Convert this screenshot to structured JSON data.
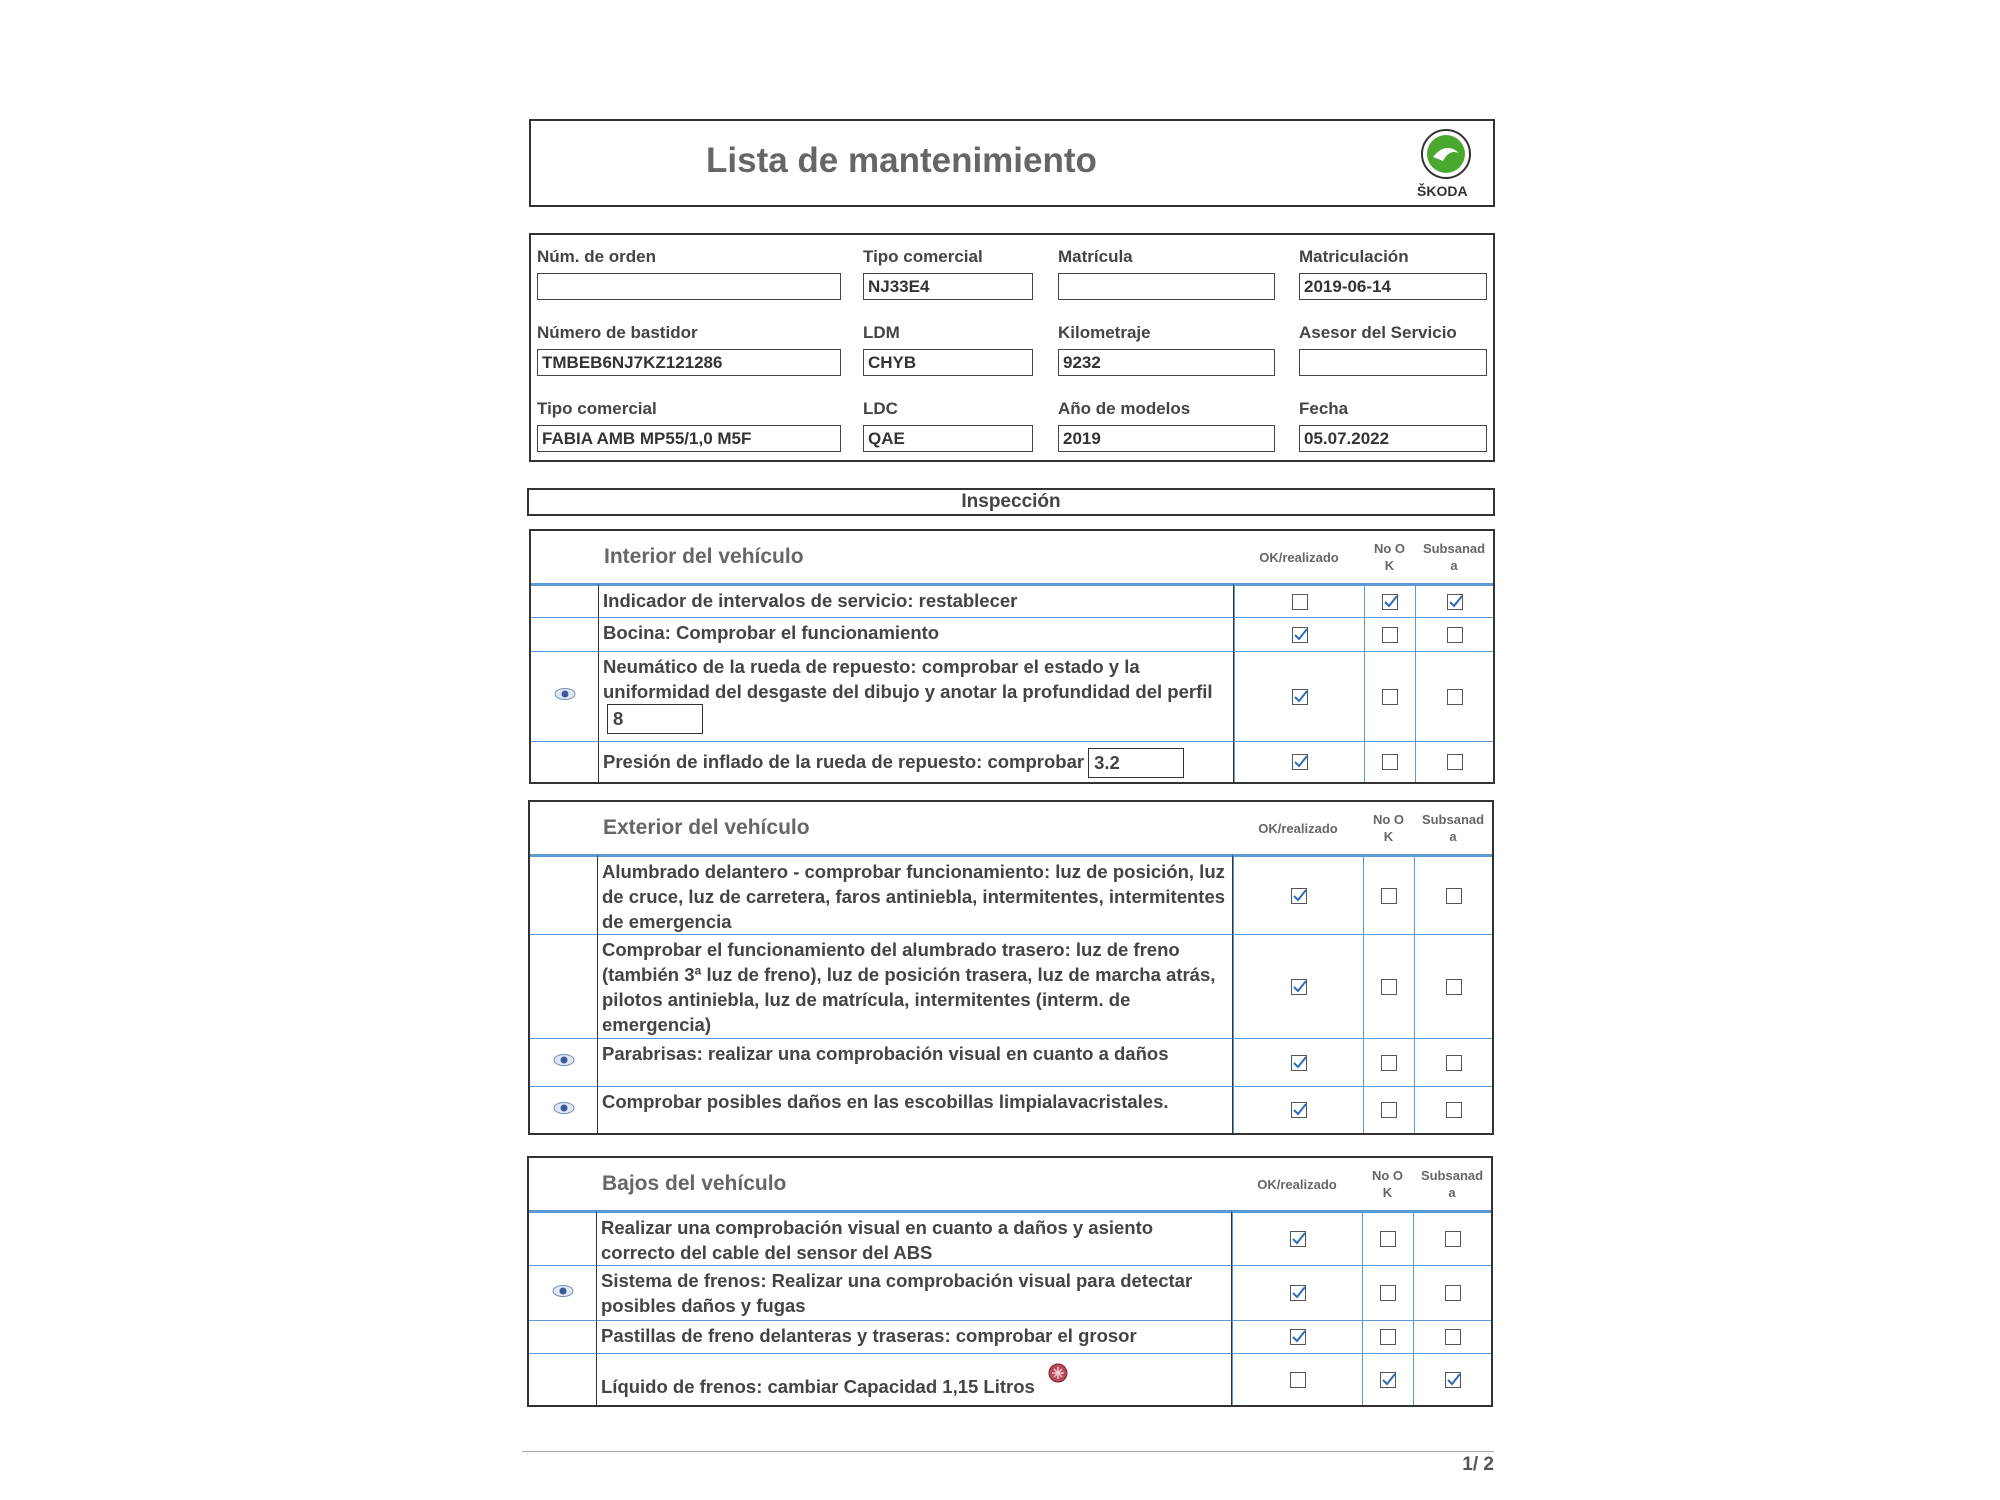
{
  "header": {
    "title": "Lista de mantenimiento",
    "brand": "ŠKODA"
  },
  "fields": [
    {
      "label": "Núm. de orden"
    },
    {
      "label": "Tipo comercial",
      "value": "NJ33E4"
    },
    {
      "label": "Matrícula"
    },
    {
      "label": "Matriculación",
      "value": "2019-06-14"
    },
    {
      "label": "Número de bastidor",
      "value": "TMBEB6NJ7KZ121286"
    },
    {
      "label": "LDM",
      "value": "CHYB"
    },
    {
      "label": "Kilometraje",
      "value": "9232"
    },
    {
      "label": "Asesor del Servicio"
    },
    {
      "label": "Tipo comercial",
      "value": "FABIA AMB MP55/1,0 M5F"
    },
    {
      "label": "LDC",
      "value": "QAE"
    },
    {
      "label": "Año de modelos",
      "value": "2019"
    },
    {
      "label": "Fecha",
      "value": "05.07.2022"
    }
  ],
  "inspection_title": "Inspección",
  "columns": [
    "OK/realizado",
    "No OK",
    "Subsanada"
  ],
  "sections": [
    {
      "title": "Interior del vehículo",
      "rows": [
        {
          "text": "Indicador de intervalos de servicio: restablecer",
          "checks": [
            false,
            true,
            true
          ]
        },
        {
          "text": "Bocina: Comprobar el funcionamiento",
          "checks": [
            true,
            false,
            false
          ]
        },
        {
          "text": "Neumático de la rueda de repuesto: comprobar el estado y la uniformidad del desgaste del dibujo y anotar la profundidad del perfil",
          "input": "8",
          "eye": true,
          "checks": [
            true,
            false,
            false
          ]
        },
        {
          "text": "Presión de inflado de la rueda de repuesto: comprobar",
          "input": "3.2",
          "checks": [
            true,
            false,
            false
          ]
        }
      ]
    },
    {
      "title": "Exterior del vehículo",
      "rows": [
        {
          "text": "Alumbrado delantero - comprobar funcionamiento: luz de posición, luz de cruce, luz de carretera, faros antiniebla, intermitentes, intermitentes de emergencia",
          "checks": [
            true,
            false,
            false
          ]
        },
        {
          "text": "Comprobar el funcionamiento del alumbrado trasero: luz de freno (también 3ª luz de freno), luz de posición trasera, luz de marcha atrás, pilotos antiniebla, luz de matrícula, intermitentes (interm. de emergencia)",
          "checks": [
            true,
            false,
            false
          ]
        },
        {
          "text": "Parabrisas: realizar una comprobación visual en cuanto a daños",
          "eye": true,
          "checks": [
            true,
            false,
            false
          ]
        },
        {
          "text": "Comprobar posibles daños en las escobillas limpialavacristales.",
          "eye": true,
          "checks": [
            true,
            false,
            false
          ]
        }
      ]
    },
    {
      "title": "Bajos del vehículo",
      "rows": [
        {
          "text": "Realizar una comprobación visual en cuanto a daños y asiento correcto del cable del sensor del ABS",
          "checks": [
            true,
            false,
            false
          ]
        },
        {
          "text": "Sistema de frenos: Realizar una comprobación visual para detectar posibles daños y fugas",
          "eye": true,
          "checks": [
            true,
            false,
            false
          ]
        },
        {
          "text": "Pastillas de freno delanteras y traseras: comprobar el grosor",
          "checks": [
            true,
            false,
            false
          ]
        },
        {
          "text": "Líquido de frenos: cambiar Capacidad 1,15 Litros",
          "alert": true,
          "checks": [
            false,
            true,
            true
          ]
        }
      ]
    }
  ],
  "page_number": "1/ 2"
}
